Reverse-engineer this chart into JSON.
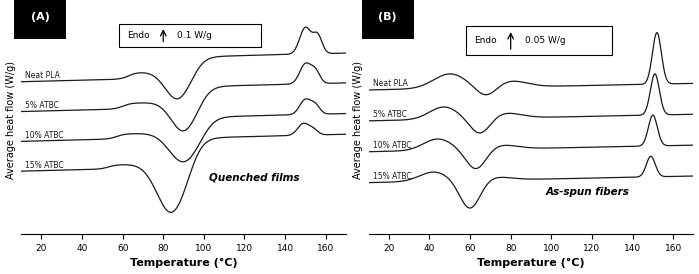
{
  "panel_A_title": "Quenched films",
  "panel_B_title": "As-spun fibers",
  "panel_A_scale": "0.1 W/g",
  "panel_B_scale": "0.05 W/g",
  "xlabel": "Temperature (°C)",
  "ylabel": "Average heat flow (W/g)",
  "labels": [
    "Neat PLA",
    "5% ATBC",
    "10% ATBC",
    "15% ATBC"
  ],
  "xmin": 10,
  "xmax": 170,
  "bg_color": "#ffffff",
  "line_color": "#1a1a1a",
  "label_A": "(A)",
  "label_B": "(B)",
  "offsets_A": [
    0.54,
    0.36,
    0.18,
    0.0
  ],
  "offsets_B": [
    0.45,
    0.3,
    0.15,
    0.0
  ]
}
